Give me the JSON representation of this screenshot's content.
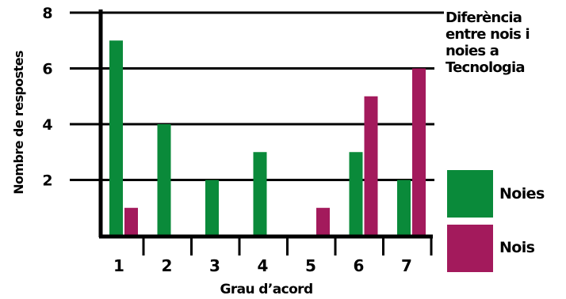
{
  "chart_data": {
    "type": "bar",
    "title": "Diferència entre nois i noies a Tecnologia",
    "xlabel": "Grau d’acord",
    "ylabel": "Nombre de respostes",
    "categories": [
      "1",
      "2",
      "3",
      "4",
      "5",
      "6",
      "7"
    ],
    "ylim": [
      0,
      8
    ],
    "yticks": [
      "2",
      "4",
      "6",
      "8"
    ],
    "grid": true,
    "legend_position": "right",
    "series": [
      {
        "name": "Noies",
        "color": "#0a8a3a",
        "values": [
          7,
          4,
          2,
          3,
          0,
          3,
          2
        ]
      },
      {
        "name": "Nois",
        "color": "#a31a5c",
        "values": [
          1,
          0,
          0,
          0,
          1,
          5,
          6
        ]
      }
    ]
  }
}
